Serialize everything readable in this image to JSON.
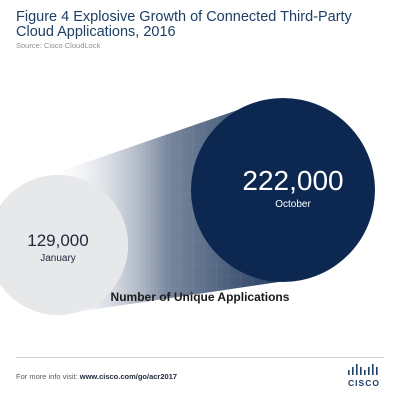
{
  "figure": {
    "title": "Figure 4  Explosive Growth of Connected Third-Party Cloud Applications, 2016",
    "source": "Source: Cisco CloudLock"
  },
  "chart_data": {
    "type": "bubble-comparison",
    "title": "Figure 4  Explosive Growth of Connected Third-Party Cloud Applications, 2016",
    "caption": "Number of Unique Applications",
    "points": [
      {
        "label": "January",
        "value": 129000,
        "value_text": "129,000"
      },
      {
        "label": "October",
        "value": 222000,
        "value_text": "222,000"
      }
    ],
    "colors": {
      "small_circle": "#e6e8ea",
      "large_circle": "#0d2850",
      "cone_start": "#ffffff",
      "cone_end": "#0d2850",
      "small_text": "#1f2a3d",
      "large_text": "#ffffff"
    }
  },
  "footer": {
    "prefix": "For more info visit: ",
    "url": "www.cisco.com/go/acr2017",
    "brand": "CISCO",
    "brand_color": "#1d3f66"
  }
}
